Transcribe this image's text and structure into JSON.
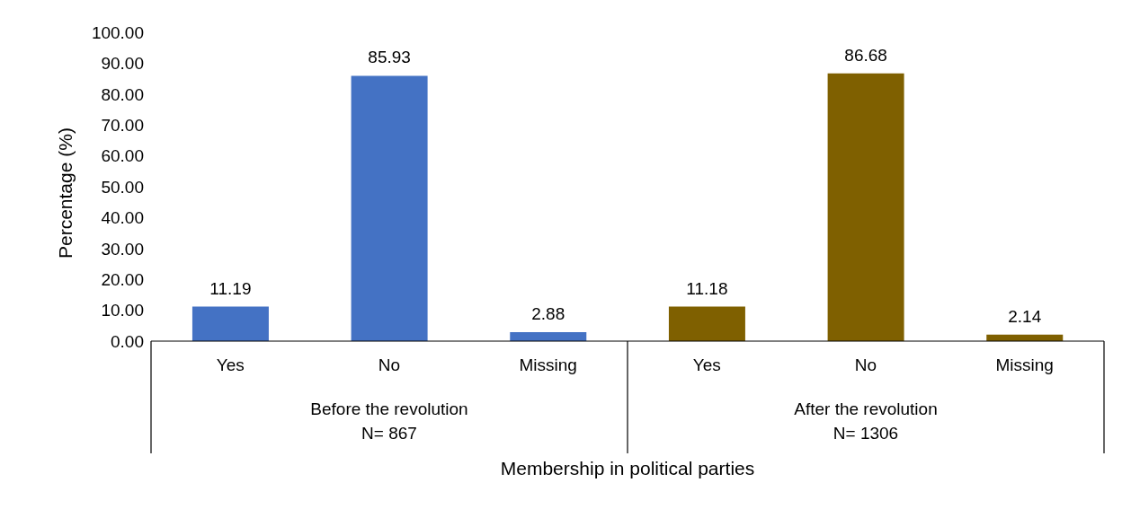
{
  "chart_data": {
    "type": "bar",
    "xlabel": "Membership in political parties",
    "ylabel": "Percentage (%)",
    "categories": [
      "Yes",
      "No",
      "Missing",
      "Yes",
      "No",
      "Missing"
    ],
    "values": [
      11.19,
      85.93,
      2.88,
      11.18,
      86.68,
      2.14
    ],
    "colors": [
      "#4472c4",
      "#4472c4",
      "#4472c4",
      "#7f6000",
      "#7f6000",
      "#7f6000"
    ],
    "ylim": [
      0,
      100
    ],
    "yticks": [
      {
        "value": 0,
        "label": "0.00"
      },
      {
        "value": 10,
        "label": "10.00"
      },
      {
        "value": 20,
        "label": "20.00"
      },
      {
        "value": 30,
        "label": "30.00"
      },
      {
        "value": 40,
        "label": "40.00"
      },
      {
        "value": 50,
        "label": "50.00"
      },
      {
        "value": 60,
        "label": "60.00"
      },
      {
        "value": 70,
        "label": "70.00"
      },
      {
        "value": 80,
        "label": "80.00"
      },
      {
        "value": 90,
        "label": "90.00"
      },
      {
        "value": 100,
        "label": "100.00"
      }
    ],
    "data_labels": true,
    "grid": false,
    "legend": false,
    "annotations": [
      "Before the revolution\nN= 867",
      "After the revolution\nN= 1306"
    ]
  }
}
